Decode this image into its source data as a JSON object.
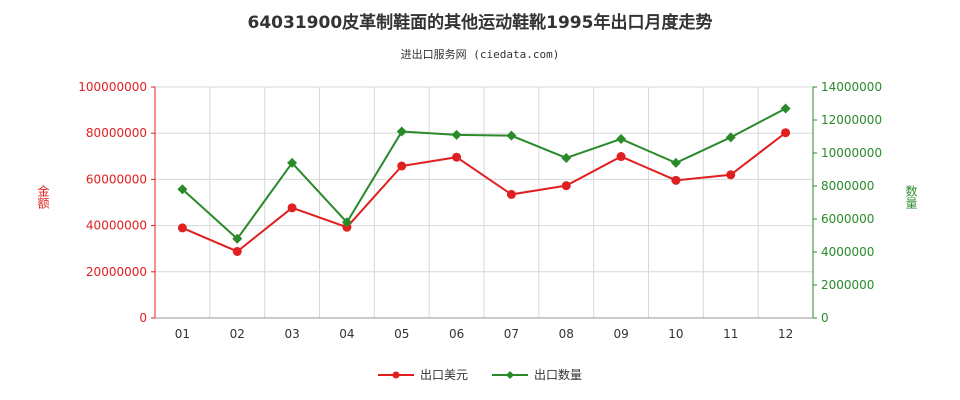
{
  "chart_data": {
    "type": "line",
    "title": "64031900皮革制鞋面的其他运动鞋靴1995年出口月度走势",
    "subtitle": "进出口服务网 (ciedata.com)",
    "categories": [
      "01",
      "02",
      "03",
      "04",
      "05",
      "06",
      "07",
      "08",
      "09",
      "10",
      "11",
      "12"
    ],
    "left_axis": {
      "label": "金额",
      "ylim": [
        0,
        100000000
      ],
      "ticks": [
        "0",
        "20000000",
        "40000000",
        "60000000",
        "80000000",
        "100000000"
      ],
      "color": "#e02020"
    },
    "right_axis": {
      "label": "数量",
      "ylim": [
        0,
        14000000
      ],
      "ticks": [
        "0",
        "2000000",
        "4000000",
        "6000000",
        "8000000",
        "10000000",
        "12000000",
        "14000000"
      ],
      "color": "#2a8a2a"
    },
    "series": [
      {
        "name": "出口美元",
        "axis": "left",
        "color": "#e02020",
        "values": [
          39000000,
          28800000,
          47700000,
          39300000,
          65800000,
          69600000,
          53500000,
          57300000,
          69900000,
          59600000,
          62000000,
          80200000
        ]
      },
      {
        "name": "出口数量",
        "axis": "right",
        "color": "#2a8a2a",
        "values": [
          7800000,
          4800000,
          9400000,
          5800000,
          11300000,
          11100000,
          11050000,
          9700000,
          10850000,
          9400000,
          10950000,
          12700000
        ]
      }
    ],
    "grid": true,
    "legend_position": "bottom"
  }
}
